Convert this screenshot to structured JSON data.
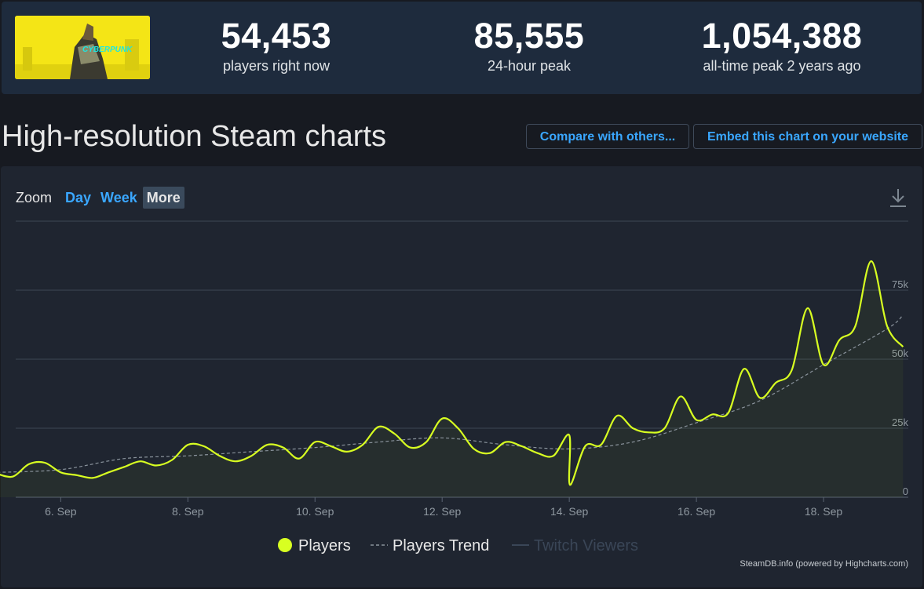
{
  "stats": [
    {
      "value": "54,453",
      "label": "players right now"
    },
    {
      "value": "85,555",
      "label": "24-hour peak"
    },
    {
      "value": "1,054,388",
      "label": "all-time peak 2 years ago"
    }
  ],
  "game": {
    "logo_text": "CYBERPUNK"
  },
  "page_title": "High-resolution Steam charts",
  "buttons": {
    "compare": "Compare with others...",
    "embed": "Embed this chart on your website"
  },
  "zoom": {
    "label": "Zoom",
    "options": [
      "Day",
      "Week",
      "More"
    ],
    "active": "More"
  },
  "credits": "SteamDB.info (powered by Highcharts.com)",
  "colors": {
    "players": "#d8ff21",
    "trend": "#8a939c",
    "twitch": "#3a4657",
    "accent": "#3aa7ff"
  },
  "chart_data": {
    "type": "line",
    "x_range": [
      "2023-09-05",
      "2023-09-19"
    ],
    "xticks": [
      "6. Sep",
      "8. Sep",
      "10. Sep",
      "12. Sep",
      "14. Sep",
      "16. Sep",
      "18. Sep"
    ],
    "yticks": [
      "0",
      "25k",
      "50k",
      "75k"
    ],
    "ylim": [
      0,
      100000
    ],
    "legend": [
      "Players",
      "Players Trend",
      "Twitch Viewers"
    ],
    "legend_position": "bottom-center",
    "series": [
      {
        "name": "Players",
        "points": [
          [
            "2023-09-05 00:00",
            8500
          ],
          [
            "2023-09-05 06:00",
            7500
          ],
          [
            "2023-09-05 12:00",
            12000
          ],
          [
            "2023-09-05 18:00",
            12500
          ],
          [
            "2023-09-06 00:00",
            9000
          ],
          [
            "2023-09-06 06:00",
            8000
          ],
          [
            "2023-09-06 12:00",
            7000
          ],
          [
            "2023-09-06 18:00",
            9000
          ],
          [
            "2023-09-07 00:00",
            11000
          ],
          [
            "2023-09-07 06:00",
            13000
          ],
          [
            "2023-09-07 12:00",
            11500
          ],
          [
            "2023-09-07 18:00",
            13500
          ],
          [
            "2023-09-08 00:00",
            19000
          ],
          [
            "2023-09-08 06:00",
            18500
          ],
          [
            "2023-09-08 12:00",
            15000
          ],
          [
            "2023-09-08 18:00",
            13000
          ],
          [
            "2023-09-09 00:00",
            15000
          ],
          [
            "2023-09-09 06:00",
            19000
          ],
          [
            "2023-09-09 12:00",
            18000
          ],
          [
            "2023-09-09 18:00",
            14000
          ],
          [
            "2023-09-10 00:00",
            20000
          ],
          [
            "2023-09-10 06:00",
            18500
          ],
          [
            "2023-09-10 12:00",
            16500
          ],
          [
            "2023-09-10 18:00",
            19000
          ],
          [
            "2023-09-11 00:00",
            25500
          ],
          [
            "2023-09-11 06:00",
            23000
          ],
          [
            "2023-09-11 12:00",
            18000
          ],
          [
            "2023-09-11 18:00",
            20000
          ],
          [
            "2023-09-12 00:00",
            28500
          ],
          [
            "2023-09-12 06:00",
            25000
          ],
          [
            "2023-09-12 12:00",
            17500
          ],
          [
            "2023-09-12 18:00",
            16000
          ],
          [
            "2023-09-13 00:00",
            20000
          ],
          [
            "2023-09-13 06:00",
            18500
          ],
          [
            "2023-09-13 12:00",
            16000
          ],
          [
            "2023-09-13 18:00",
            15000
          ],
          [
            "2023-09-14 00:00",
            22500
          ],
          [
            "2023-09-14 00:15",
            4500
          ],
          [
            "2023-09-14 06:00",
            18500
          ],
          [
            "2023-09-14 12:00",
            19000
          ],
          [
            "2023-09-14 18:00",
            29500
          ],
          [
            "2023-09-15 00:00",
            25000
          ],
          [
            "2023-09-15 06:00",
            23500
          ],
          [
            "2023-09-15 12:00",
            25000
          ],
          [
            "2023-09-15 18:00",
            36500
          ],
          [
            "2023-09-16 00:00",
            28000
          ],
          [
            "2023-09-16 06:00",
            30000
          ],
          [
            "2023-09-16 12:00",
            30500
          ],
          [
            "2023-09-16 18:00",
            46500
          ],
          [
            "2023-09-17 00:00",
            36000
          ],
          [
            "2023-09-17 06:00",
            41500
          ],
          [
            "2023-09-17 12:00",
            46000
          ],
          [
            "2023-09-17 18:00",
            68500
          ],
          [
            "2023-09-18 00:00",
            48000
          ],
          [
            "2023-09-18 06:00",
            57000
          ],
          [
            "2023-09-18 12:00",
            62000
          ],
          [
            "2023-09-18 18:00",
            85500
          ],
          [
            "2023-09-19 00:00",
            62000
          ],
          [
            "2023-09-19 06:00",
            54500
          ]
        ]
      },
      {
        "name": "Players Trend",
        "points": [
          [
            "2023-09-05 00:00",
            9000
          ],
          [
            "2023-09-06 00:00",
            10000
          ],
          [
            "2023-09-07 00:00",
            14000
          ],
          [
            "2023-09-08 00:00",
            15000
          ],
          [
            "2023-09-09 00:00",
            16500
          ],
          [
            "2023-09-10 00:00",
            18000
          ],
          [
            "2023-09-11 00:00",
            20000
          ],
          [
            "2023-09-12 00:00",
            21500
          ],
          [
            "2023-09-13 00:00",
            19000
          ],
          [
            "2023-09-14 00:00",
            17500
          ],
          [
            "2023-09-15 00:00",
            20000
          ],
          [
            "2023-09-16 00:00",
            27000
          ],
          [
            "2023-09-17 00:00",
            35000
          ],
          [
            "2023-09-18 00:00",
            48000
          ],
          [
            "2023-09-19 00:00",
            61000
          ],
          [
            "2023-09-19 06:00",
            66000
          ]
        ]
      },
      {
        "name": "Twitch Viewers",
        "points": []
      }
    ]
  }
}
